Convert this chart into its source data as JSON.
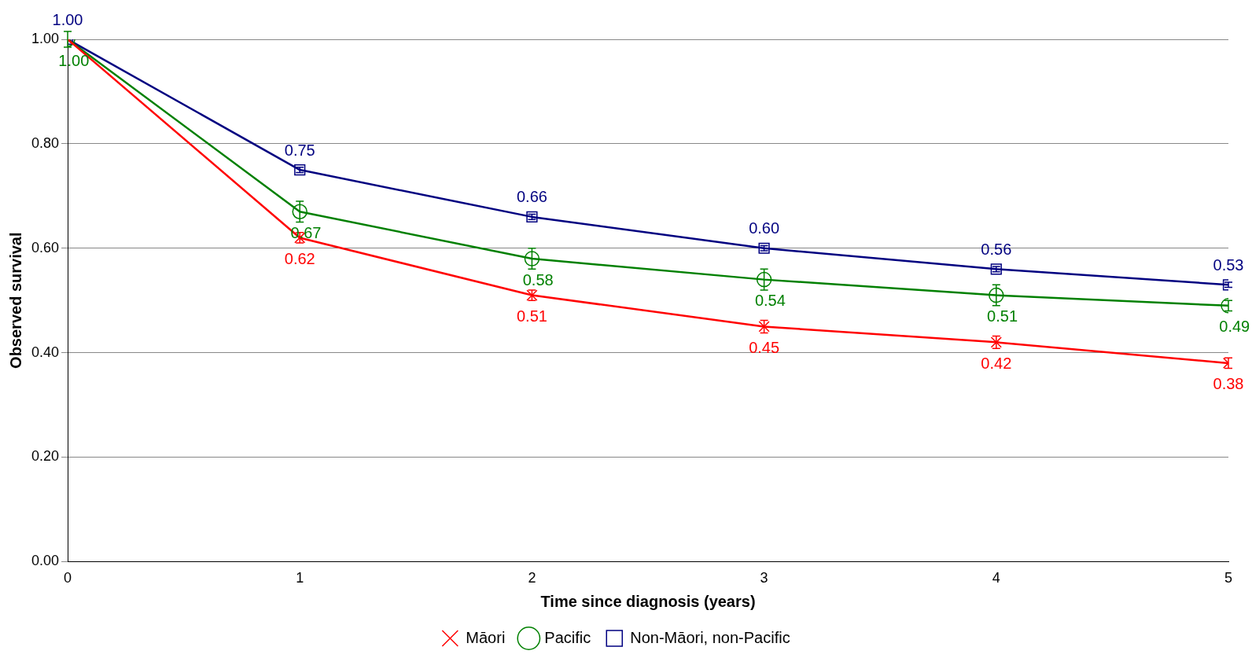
{
  "chart_data": {
    "type": "line",
    "xlabel": "Time since diagnosis (years)",
    "ylabel": "Observed survival",
    "x": [
      0,
      1,
      2,
      3,
      4,
      5
    ],
    "series": [
      {
        "name": "Māori",
        "color": "#ff0000",
        "marker": "cross",
        "values": [
          1.0,
          0.62,
          0.51,
          0.45,
          0.42,
          0.38
        ],
        "errors": [
          null,
          0.01,
          0.01,
          0.012,
          0.012,
          0.01
        ],
        "value_labels": [
          null,
          "0.62",
          "0.51",
          "0.45",
          "0.42",
          "0.38"
        ]
      },
      {
        "name": "Pacific",
        "color": "#008000",
        "marker": "circle",
        "values": [
          1.0,
          0.67,
          0.58,
          0.54,
          0.51,
          0.49
        ],
        "errors": [
          0.015,
          0.02,
          0.02,
          0.02,
          0.02,
          0.01
        ],
        "value_labels": [
          "1.00",
          "0.67",
          "0.58",
          "0.54",
          "0.51",
          "0.49"
        ]
      },
      {
        "name": "Non-Māori, non-Pacific",
        "color": "#000080",
        "marker": "square",
        "values": [
          1.0,
          0.75,
          0.66,
          0.6,
          0.56,
          0.53
        ],
        "errors": [
          null,
          0.005,
          0.005,
          0.005,
          0.005,
          0.005
        ],
        "value_labels": [
          "1.00",
          "0.75",
          "0.66",
          "0.60",
          "0.56",
          "0.53"
        ]
      }
    ],
    "xlim": [
      0,
      5
    ],
    "xticks": [
      0,
      1,
      2,
      3,
      4,
      5
    ],
    "ylim": [
      0,
      1
    ],
    "yticks": [
      {
        "value": 0,
        "label": "0.00"
      },
      {
        "value": 0.2,
        "label": "0.20"
      },
      {
        "value": 0.4,
        "label": "0.40"
      },
      {
        "value": 0.6,
        "label": "0.60"
      },
      {
        "value": 0.8,
        "label": "0.80"
      },
      {
        "value": 1,
        "label": "1.00"
      }
    ],
    "grid": "y",
    "legend": "bottom",
    "line_style": "solid"
  }
}
